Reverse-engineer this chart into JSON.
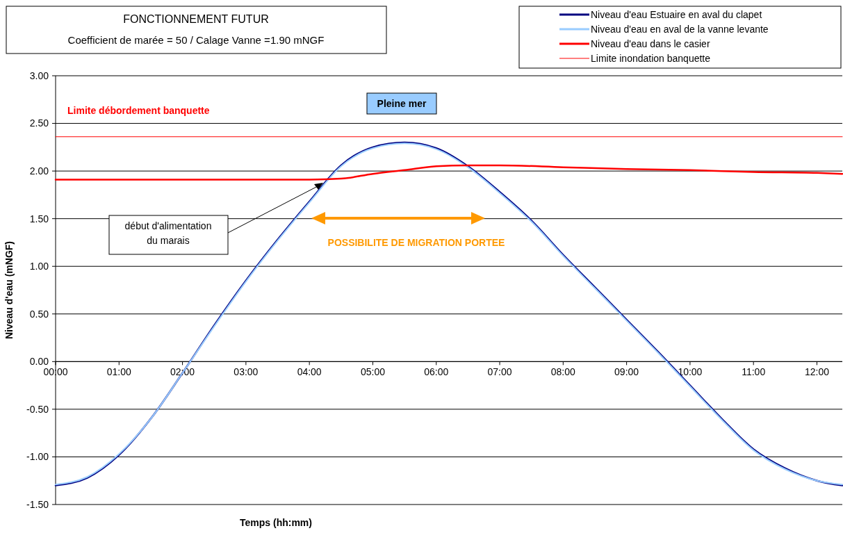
{
  "chart_data": {
    "type": "line",
    "title": "FONCTIONNEMENT FUTUR",
    "subtitle": "Coefficient de marée = 50 / Calage Vanne =1.90 mNGF",
    "xlabel": "Temps (hh:mm)",
    "ylabel": "Niveau d'eau (mNGF)",
    "xlim": [
      0,
      12.4
    ],
    "ylim": [
      -1.5,
      3
    ],
    "xticks": [
      {
        "value": 0,
        "label": "00:00"
      },
      {
        "value": 1,
        "label": "01:00"
      },
      {
        "value": 2,
        "label": "02:00"
      },
      {
        "value": 3,
        "label": "03:00"
      },
      {
        "value": 4,
        "label": "04:00"
      },
      {
        "value": 5,
        "label": "05:00"
      },
      {
        "value": 6,
        "label": "06:00"
      },
      {
        "value": 7,
        "label": "07:00"
      },
      {
        "value": 8,
        "label": "08:00"
      },
      {
        "value": 9,
        "label": "09:00"
      },
      {
        "value": 10,
        "label": "10:00"
      },
      {
        "value": 11,
        "label": "11:00"
      },
      {
        "value": 12,
        "label": "12:00"
      }
    ],
    "yticks": [
      {
        "value": -1.5,
        "label": "-1.50"
      },
      {
        "value": -1,
        "label": "-1.00"
      },
      {
        "value": -0.5,
        "label": "-0.50"
      },
      {
        "value": 0,
        "label": "0.00"
      },
      {
        "value": 0.5,
        "label": "0.50"
      },
      {
        "value": 1,
        "label": "1.00"
      },
      {
        "value": 1.5,
        "label": "1.50"
      },
      {
        "value": 2,
        "label": "2.00"
      },
      {
        "value": 2.5,
        "label": "2.50"
      },
      {
        "value": 3,
        "label": "3.00"
      }
    ],
    "grid": "y",
    "legend": "top right",
    "marker": "none",
    "line_style": "solid",
    "series": [
      {
        "name": "Niveau d'eau Estuaire en aval du clapet",
        "color": "#000080",
        "x": [
          0,
          0.5,
          1,
          1.5,
          2,
          2.5,
          3,
          3.5,
          4,
          4.5,
          5,
          5.5,
          6,
          6.5,
          7,
          7.5,
          8,
          8.5,
          9,
          9.5,
          10,
          10.5,
          11,
          11.5,
          12,
          12.4
        ],
        "values": [
          -1.3,
          -1.22,
          -0.98,
          -0.6,
          -0.12,
          0.38,
          0.85,
          1.28,
          1.68,
          2.06,
          2.25,
          2.3,
          2.24,
          2.05,
          1.78,
          1.48,
          1.12,
          0.78,
          0.44,
          0.1,
          -0.25,
          -0.6,
          -0.92,
          -1.12,
          -1.25,
          -1.3
        ]
      },
      {
        "name": "Niveau d'eau en aval de la vanne levante",
        "color": "#99ccff",
        "x": [
          0,
          0.5,
          1,
          1.5,
          2,
          2.5,
          3,
          3.5,
          4,
          4.5,
          5,
          5.5,
          6,
          6.5,
          7,
          7.5,
          8,
          8.5,
          9,
          9.5,
          10,
          10.5,
          11,
          11.5,
          12,
          12.4
        ],
        "values": [
          -1.29,
          -1.21,
          -0.97,
          -0.6,
          -0.12,
          0.37,
          0.84,
          1.27,
          1.67,
          2.05,
          2.24,
          2.29,
          2.23,
          2.04,
          1.77,
          1.47,
          1.11,
          0.77,
          0.43,
          0.09,
          -0.26,
          -0.61,
          -0.93,
          -1.13,
          -1.25,
          -1.29
        ]
      },
      {
        "name": "Niveau d'eau dans le casier",
        "color": "#ff0000",
        "x": [
          0,
          1,
          2,
          3,
          4,
          4.5,
          5,
          5.5,
          6,
          6.5,
          7,
          8,
          9,
          10,
          11,
          12,
          12.4
        ],
        "values": [
          1.91,
          1.91,
          1.91,
          1.91,
          1.91,
          1.92,
          1.97,
          2.01,
          2.05,
          2.06,
          2.06,
          2.04,
          2.02,
          2.01,
          1.99,
          1.98,
          1.97
        ]
      },
      {
        "name": "Limite inondation banquette",
        "color": "#ff0000",
        "x": [
          0,
          12.4
        ],
        "values": [
          2.36,
          2.36
        ]
      }
    ],
    "annotations": [
      "Limite débordement banquette",
      "Pleine mer",
      "début d'alimentation du marais",
      "POSSIBILITE DE MIGRATION PORTEE"
    ]
  }
}
